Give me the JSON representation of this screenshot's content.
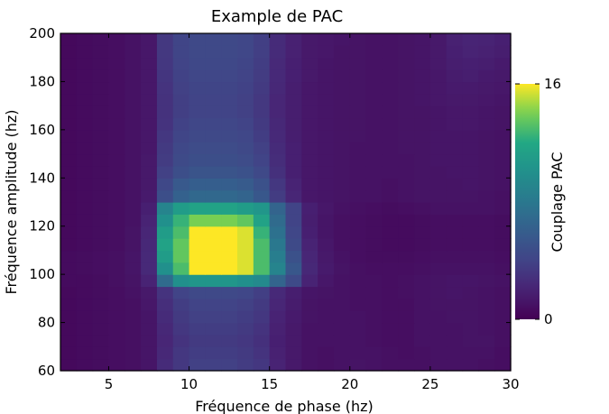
{
  "chart_data": {
    "type": "heatmap",
    "title": "Example de PAC",
    "xlabel": "Fréquence de phase (hz)",
    "ylabel": "Fréquence amplitude (hz)",
    "xlim": [
      2,
      30
    ],
    "ylim": [
      60,
      200
    ],
    "x_step": 1,
    "y_step": 5,
    "xticks": [
      5,
      10,
      15,
      20,
      25,
      30
    ],
    "yticks": [
      60,
      80,
      100,
      120,
      140,
      160,
      180,
      200
    ],
    "colormap": "viridis",
    "colorbar": {
      "label": "Couplage PAC",
      "min": 0,
      "max": 16,
      "ticks": [
        0,
        16
      ]
    },
    "grid": false,
    "z": [
      [
        0.5,
        0.6,
        0.7,
        0.8,
        0.9,
        1.2,
        2.5,
        3.3,
        3.8,
        3.8,
        3.8,
        3.5,
        3.2,
        2.0,
        1.4,
        1.0,
        0.9,
        1.0,
        1.1,
        1.0,
        0.9,
        0.9,
        0.9,
        1.0,
        1.0,
        1.0,
        0.9,
        0.8
      ],
      [
        0.5,
        0.6,
        0.7,
        0.8,
        0.9,
        1.2,
        2.3,
        3.2,
        3.6,
        3.6,
        3.6,
        3.4,
        3.0,
        1.9,
        1.4,
        1.0,
        0.9,
        1.0,
        1.0,
        1.0,
        0.9,
        0.8,
        0.9,
        1.0,
        1.0,
        1.0,
        1.0,
        0.8
      ],
      [
        0.5,
        0.6,
        0.7,
        0.8,
        0.9,
        1.2,
        2.2,
        3.0,
        3.4,
        3.4,
        3.4,
        3.2,
        2.8,
        1.8,
        1.4,
        1.0,
        1.0,
        1.0,
        1.0,
        0.9,
        0.8,
        0.8,
        1.0,
        1.0,
        1.0,
        1.1,
        1.1,
        0.9
      ],
      [
        0.5,
        0.6,
        0.7,
        0.8,
        0.9,
        1.2,
        2.3,
        3.2,
        3.6,
        3.6,
        3.6,
        3.4,
        3.0,
        1.9,
        1.4,
        1.0,
        1.0,
        1.0,
        1.0,
        0.9,
        0.8,
        0.8,
        1.0,
        1.0,
        1.0,
        1.1,
        1.0,
        0.9
      ],
      [
        0.5,
        0.6,
        0.7,
        0.8,
        0.9,
        1.2,
        2.5,
        3.4,
        3.8,
        3.8,
        3.8,
        3.6,
        3.2,
        2.0,
        1.5,
        1.1,
        1.0,
        1.0,
        1.0,
        0.9,
        0.8,
        0.8,
        1.0,
        1.0,
        1.1,
        1.1,
        1.0,
        0.9
      ],
      [
        0.5,
        0.6,
        0.7,
        0.8,
        0.9,
        1.3,
        2.7,
        3.6,
        4.0,
        4.0,
        4.0,
        3.8,
        3.4,
        2.2,
        1.6,
        1.1,
        1.0,
        1.0,
        0.9,
        0.9,
        0.8,
        0.8,
        1.0,
        1.1,
        1.1,
        1.1,
        1.0,
        0.9
      ],
      [
        0.5,
        0.6,
        0.7,
        0.8,
        1.0,
        1.4,
        3.0,
        4.0,
        4.4,
        4.4,
        4.4,
        4.2,
        3.7,
        2.4,
        1.7,
        1.2,
        1.1,
        1.0,
        0.9,
        0.9,
        0.8,
        0.9,
        1.0,
        1.1,
        1.2,
        1.1,
        1.0,
        0.9
      ],
      [
        0.6,
        0.6,
        0.7,
        0.9,
        1.1,
        2.0,
        7.0,
        10.0,
        10.5,
        10.5,
        10.5,
        10.0,
        9.5,
        6.5,
        4.5,
        2.0,
        1.3,
        1.0,
        0.9,
        0.9,
        0.8,
        0.9,
        1.0,
        1.1,
        1.2,
        1.2,
        1.1,
        1.0
      ],
      [
        0.6,
        0.7,
        0.8,
        0.9,
        1.2,
        2.4,
        10.0,
        13.0,
        16.0,
        16.0,
        16.0,
        15.5,
        13.0,
        9.0,
        5.5,
        2.3,
        1.5,
        1.1,
        0.9,
        0.8,
        0.8,
        0.8,
        0.9,
        1.0,
        1.0,
        1.0,
        1.0,
        0.9
      ],
      [
        0.6,
        0.7,
        0.8,
        0.9,
        1.2,
        2.4,
        11.0,
        13.5,
        16.0,
        16.0,
        16.0,
        15.5,
        13.0,
        8.5,
        5.0,
        2.2,
        1.4,
        1.0,
        0.8,
        0.7,
        0.7,
        0.7,
        0.8,
        0.9,
        0.9,
        0.9,
        0.9,
        0.8
      ],
      [
        0.5,
        0.6,
        0.7,
        0.8,
        1.1,
        2.3,
        11.5,
        13.5,
        16.0,
        16.0,
        16.0,
        15.5,
        13.0,
        8.0,
        4.5,
        2.0,
        1.3,
        0.9,
        0.8,
        0.7,
        0.6,
        0.6,
        0.7,
        0.8,
        0.8,
        0.8,
        0.8,
        0.7
      ],
      [
        0.5,
        0.6,
        0.7,
        0.8,
        1.1,
        2.2,
        11.0,
        13.0,
        16.0,
        16.0,
        16.0,
        15.5,
        12.5,
        7.5,
        4.2,
        1.8,
        1.2,
        0.9,
        0.8,
        0.7,
        0.6,
        0.6,
        0.7,
        0.8,
        0.8,
        0.8,
        0.8,
        0.7
      ],
      [
        0.5,
        0.6,
        0.7,
        0.8,
        1.0,
        2.0,
        10.0,
        12.5,
        14.0,
        14.0,
        14.0,
        13.5,
        11.5,
        7.0,
        4.0,
        1.7,
        1.2,
        0.9,
        0.8,
        0.7,
        0.6,
        0.6,
        0.7,
        0.8,
        0.8,
        0.8,
        0.8,
        0.7
      ],
      [
        0.5,
        0.6,
        0.7,
        0.8,
        1.0,
        1.8,
        9.0,
        11.0,
        11.5,
        11.5,
        11.5,
        11.0,
        10.5,
        6.5,
        4.0,
        1.8,
        1.3,
        1.0,
        0.9,
        0.8,
        0.7,
        0.8,
        0.9,
        1.0,
        1.0,
        1.0,
        1.0,
        0.9
      ],
      [
        0.5,
        0.6,
        0.7,
        0.8,
        1.0,
        1.5,
        4.8,
        6.2,
        6.8,
        6.8,
        6.8,
        6.5,
        5.5,
        3.5,
        2.2,
        1.3,
        1.2,
        1.1,
        1.0,
        1.0,
        0.9,
        1.0,
        1.1,
        1.1,
        1.1,
        1.1,
        1.0,
        0.9
      ],
      [
        0.5,
        0.6,
        0.7,
        0.8,
        1.0,
        1.4,
        4.3,
        5.6,
        6.0,
        6.0,
        6.0,
        5.8,
        5.0,
        3.2,
        2.0,
        1.3,
        1.2,
        1.1,
        1.0,
        1.0,
        0.9,
        1.0,
        1.1,
        1.1,
        1.1,
        1.2,
        1.1,
        1.0
      ],
      [
        0.5,
        0.6,
        0.7,
        0.8,
        1.0,
        1.4,
        3.8,
        4.8,
        5.2,
        5.2,
        5.2,
        5.0,
        4.4,
        2.8,
        1.8,
        1.3,
        1.2,
        1.1,
        1.0,
        1.0,
        1.0,
        1.0,
        1.1,
        1.1,
        1.2,
        1.2,
        1.1,
        1.0
      ],
      [
        0.5,
        0.6,
        0.7,
        0.8,
        1.0,
        1.4,
        3.5,
        4.5,
        4.8,
        4.8,
        4.8,
        4.6,
        4.0,
        2.6,
        1.8,
        1.3,
        1.2,
        1.1,
        1.0,
        1.0,
        1.0,
        1.0,
        1.1,
        1.2,
        1.2,
        1.2,
        1.1,
        1.0
      ],
      [
        0.5,
        0.6,
        0.7,
        0.8,
        1.0,
        1.3,
        3.4,
        4.3,
        4.6,
        4.6,
        4.6,
        4.4,
        3.8,
        2.5,
        1.8,
        1.3,
        1.2,
        1.1,
        1.0,
        1.0,
        1.0,
        1.1,
        1.1,
        1.2,
        1.2,
        1.2,
        1.1,
        1.0
      ],
      [
        0.5,
        0.6,
        0.7,
        0.8,
        1.0,
        1.3,
        3.2,
        4.1,
        4.4,
        4.4,
        4.4,
        4.2,
        3.6,
        2.4,
        1.7,
        1.3,
        1.2,
        1.1,
        1.1,
        1.0,
        1.0,
        1.1,
        1.1,
        1.2,
        1.2,
        1.2,
        1.1,
        1.0
      ],
      [
        0.5,
        0.6,
        0.7,
        0.8,
        1.0,
        1.3,
        3.0,
        3.9,
        4.2,
        4.2,
        4.2,
        4.0,
        3.4,
        2.3,
        1.7,
        1.3,
        1.2,
        1.1,
        1.1,
        1.0,
        1.0,
        1.1,
        1.1,
        1.2,
        1.3,
        1.3,
        1.2,
        1.1
      ],
      [
        0.5,
        0.6,
        0.7,
        0.8,
        1.0,
        1.3,
        2.9,
        3.7,
        4.0,
        4.0,
        4.0,
        3.8,
        3.3,
        2.2,
        1.7,
        1.3,
        1.2,
        1.1,
        1.1,
        1.0,
        1.0,
        1.1,
        1.1,
        1.2,
        1.3,
        1.3,
        1.2,
        1.1
      ],
      [
        0.5,
        0.6,
        0.7,
        0.8,
        1.0,
        1.3,
        2.9,
        3.7,
        4.0,
        4.0,
        4.0,
        3.8,
        3.3,
        2.2,
        1.7,
        1.3,
        1.2,
        1.1,
        1.1,
        1.0,
        1.0,
        1.1,
        1.2,
        1.3,
        1.4,
        1.4,
        1.3,
        1.2
      ],
      [
        0.5,
        0.6,
        0.7,
        0.8,
        1.0,
        1.3,
        3.0,
        3.8,
        4.1,
        4.1,
        4.1,
        3.9,
        3.4,
        2.3,
        1.7,
        1.3,
        1.2,
        1.1,
        1.1,
        1.0,
        1.0,
        1.1,
        1.2,
        1.3,
        1.5,
        1.5,
        1.4,
        1.3
      ],
      [
        0.5,
        0.6,
        0.7,
        0.8,
        1.0,
        1.3,
        3.1,
        3.9,
        4.2,
        4.2,
        4.2,
        4.0,
        3.5,
        2.4,
        1.8,
        1.4,
        1.2,
        1.1,
        1.1,
        1.0,
        1.0,
        1.1,
        1.2,
        1.3,
        1.6,
        1.7,
        1.5,
        1.4
      ],
      [
        0.5,
        0.6,
        0.7,
        0.8,
        1.0,
        1.3,
        3.2,
        4.0,
        4.3,
        4.3,
        4.3,
        4.1,
        3.6,
        2.4,
        1.8,
        1.4,
        1.2,
        1.1,
        1.1,
        1.0,
        1.0,
        1.1,
        1.2,
        1.4,
        1.7,
        1.8,
        1.7,
        1.5
      ],
      [
        0.5,
        0.6,
        0.7,
        0.8,
        1.0,
        1.3,
        3.3,
        4.1,
        4.4,
        4.4,
        4.4,
        4.2,
        3.7,
        2.5,
        1.9,
        1.4,
        1.3,
        1.1,
        1.1,
        1.0,
        1.0,
        1.1,
        1.2,
        1.4,
        1.8,
        2.0,
        1.9,
        1.7
      ],
      [
        0.5,
        0.6,
        0.7,
        0.8,
        1.0,
        1.3,
        3.3,
        4.1,
        4.4,
        4.4,
        4.4,
        4.2,
        3.7,
        2.5,
        1.9,
        1.4,
        1.3,
        1.2,
        1.1,
        1.0,
        1.0,
        1.1,
        1.2,
        1.4,
        1.9,
        2.1,
        2.0,
        1.8
      ]
    ]
  }
}
